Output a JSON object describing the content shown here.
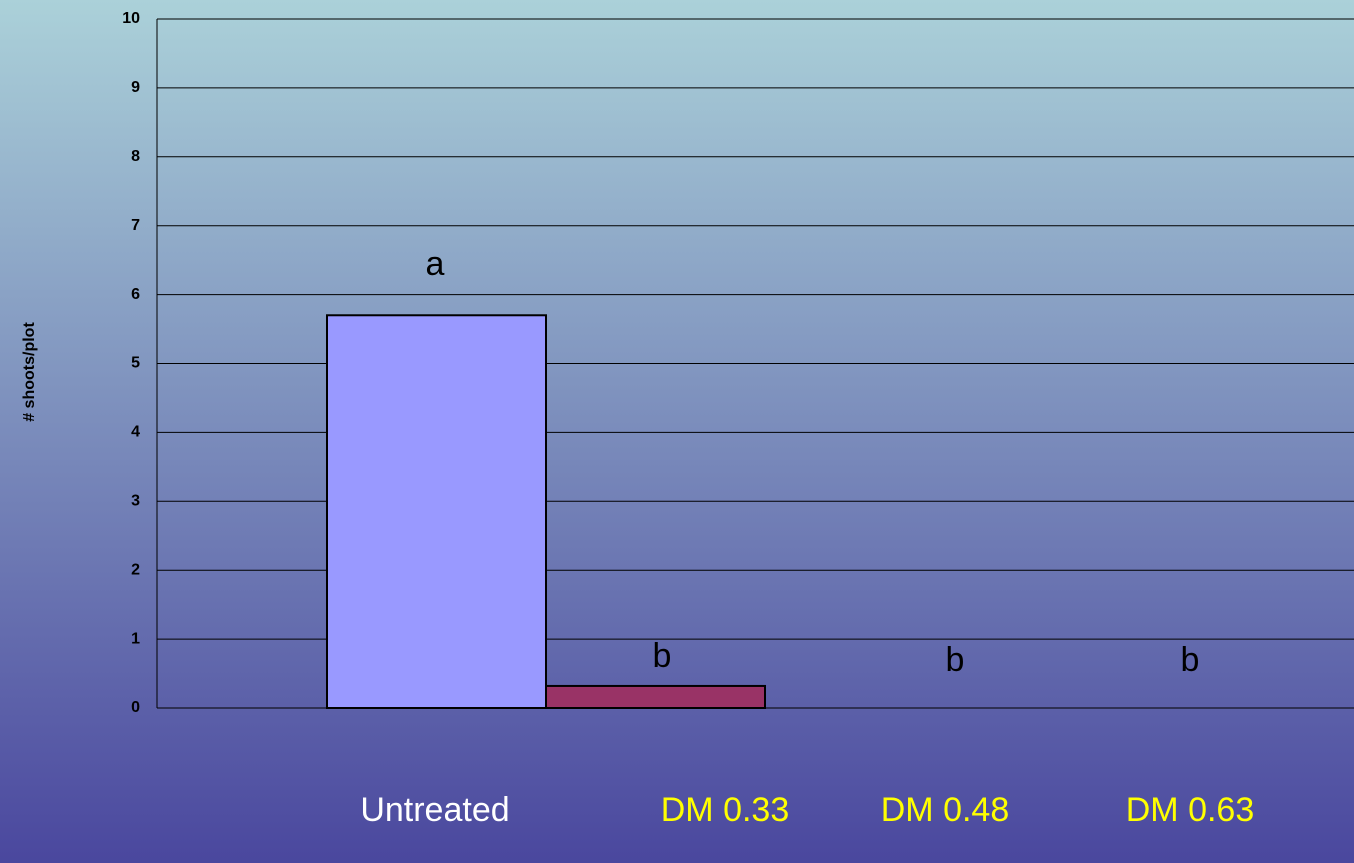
{
  "chart_data": {
    "type": "bar",
    "y_label": "# shoots/plot",
    "series": [
      {
        "name": "Untreated",
        "color": "#9999ff",
        "values": [
          5.7
        ]
      },
      {
        "name": "DM 0.33",
        "color": "#993366",
        "values": [
          0.32
        ]
      },
      {
        "name": "DM 0.48",
        "color": "#ffffcc",
        "values": [
          0
        ]
      },
      {
        "name": "DM 0.63",
        "color": "#ccffff",
        "values": [
          0
        ]
      }
    ],
    "annotations": [
      "a",
      "b",
      "b",
      "b"
    ],
    "ylim": [
      0,
      10
    ],
    "yticks": [
      0,
      1,
      2,
      3,
      4,
      5,
      6,
      7,
      8,
      9,
      10
    ],
    "grid": true
  }
}
